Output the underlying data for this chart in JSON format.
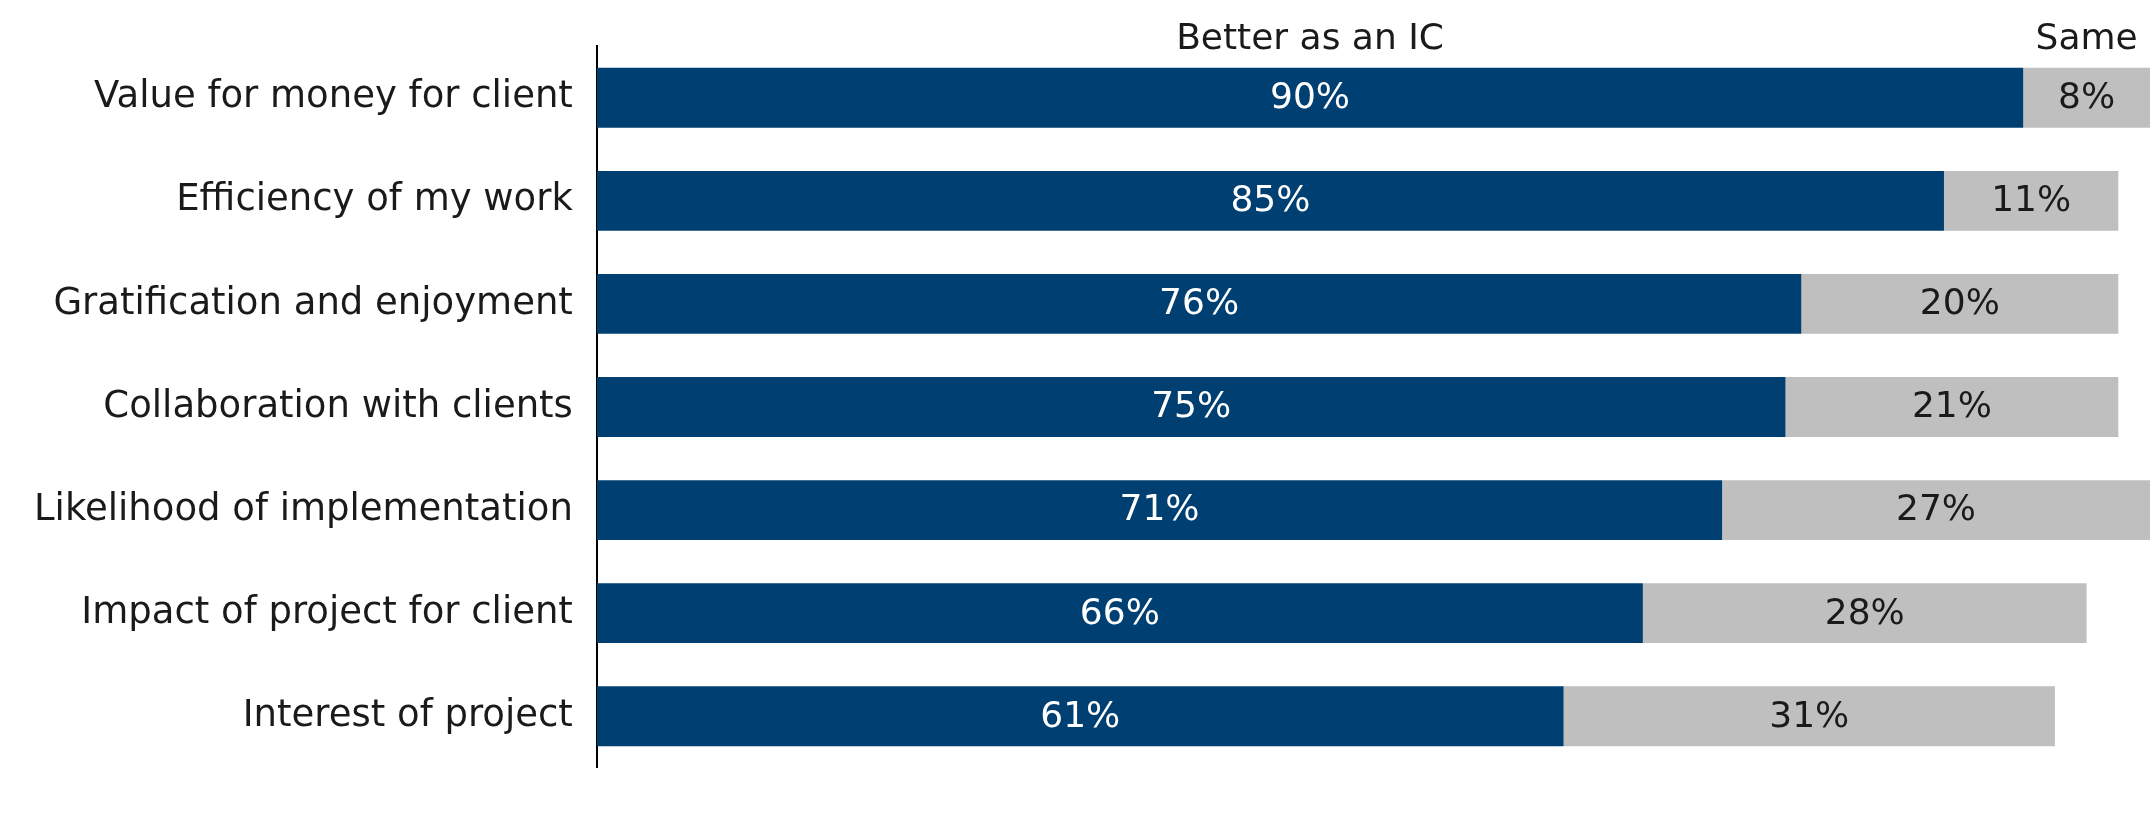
{
  "chart_data": {
    "type": "bar",
    "orientation": "horizontal",
    "stacked": true,
    "categories": [
      "Value for money for client",
      "Efficiency of my work",
      "Gratification and enjoyment",
      "Collaboration with clients",
      "Likelihood of implementation",
      "Impact of project for client",
      "Interest of project"
    ],
    "series": [
      {
        "name": "Better as an IC",
        "color": "#003f72",
        "values": [
          90,
          85,
          76,
          75,
          71,
          66,
          61
        ],
        "value_labels": [
          "90%",
          "85%",
          "76%",
          "75%",
          "71%",
          "66%",
          "61%"
        ]
      },
      {
        "name": "Same",
        "color": "#bfbfbf",
        "values": [
          8,
          11,
          20,
          21,
          27,
          28,
          31
        ],
        "value_labels": [
          "8%",
          "11%",
          "20%",
          "21%",
          "27%",
          "28%",
          "31%"
        ]
      }
    ]
  }
}
